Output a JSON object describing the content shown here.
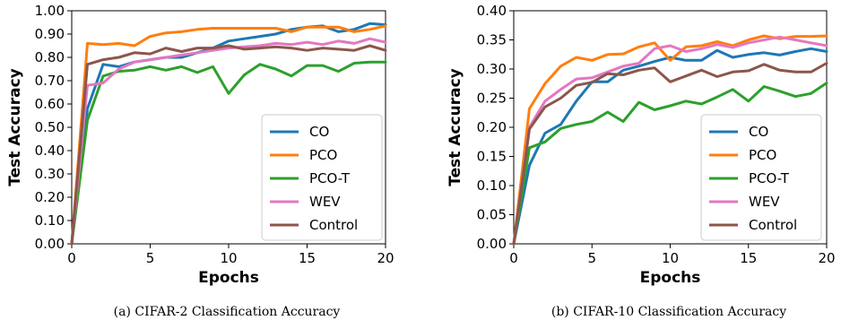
{
  "colors": {
    "CO": "#1f77b4",
    "PCO": "#ff7f0e",
    "PCO-T": "#2ca02c",
    "WEV": "#e377c2",
    "Control": "#8c564b"
  },
  "chart_data": [
    {
      "type": "line",
      "title": "",
      "caption": "(a) CIFAR-2 Classification Accuracy",
      "xlabel": "Epochs",
      "ylabel": "Test Accuracy",
      "xlim": [
        0,
        20
      ],
      "ylim": [
        0,
        1.0
      ],
      "xticks": [
        0,
        5,
        10,
        15,
        20
      ],
      "yticks": [
        0.0,
        0.1,
        0.2,
        0.3,
        0.4,
        0.5,
        0.6,
        0.7,
        0.8,
        0.9,
        1.0
      ],
      "ytick_labels": [
        "0.00",
        "0.10",
        "0.20",
        "0.30",
        "0.40",
        "0.50",
        "0.60",
        "0.70",
        "0.80",
        "0.90",
        "1.00"
      ],
      "legend_position": "lower-right",
      "x": [
        0,
        1,
        2,
        3,
        4,
        5,
        6,
        7,
        8,
        9,
        10,
        11,
        12,
        13,
        14,
        15,
        16,
        17,
        18,
        19,
        20
      ],
      "series": [
        {
          "name": "CO",
          "values": [
            0.0,
            0.58,
            0.77,
            0.76,
            0.78,
            0.79,
            0.8,
            0.8,
            0.82,
            0.84,
            0.87,
            0.88,
            0.89,
            0.9,
            0.92,
            0.93,
            0.935,
            0.91,
            0.92,
            0.945,
            0.94
          ]
        },
        {
          "name": "PCO",
          "values": [
            0.0,
            0.86,
            0.855,
            0.86,
            0.85,
            0.89,
            0.905,
            0.91,
            0.92,
            0.925,
            0.925,
            0.925,
            0.925,
            0.925,
            0.91,
            0.93,
            0.93,
            0.93,
            0.91,
            0.92,
            0.935
          ]
        },
        {
          "name": "PCO-T",
          "values": [
            0.0,
            0.53,
            0.72,
            0.74,
            0.745,
            0.76,
            0.745,
            0.76,
            0.735,
            0.76,
            0.645,
            0.725,
            0.77,
            0.75,
            0.72,
            0.765,
            0.765,
            0.74,
            0.775,
            0.78,
            0.78
          ]
        },
        {
          "name": "WEV",
          "values": [
            0.0,
            0.68,
            0.69,
            0.75,
            0.78,
            0.79,
            0.8,
            0.81,
            0.82,
            0.83,
            0.84,
            0.845,
            0.85,
            0.86,
            0.855,
            0.865,
            0.855,
            0.87,
            0.86,
            0.88,
            0.865
          ]
        },
        {
          "name": "Control",
          "values": [
            0.0,
            0.77,
            0.79,
            0.8,
            0.82,
            0.815,
            0.84,
            0.825,
            0.84,
            0.84,
            0.85,
            0.835,
            0.84,
            0.845,
            0.84,
            0.83,
            0.84,
            0.835,
            0.83,
            0.85,
            0.83
          ]
        }
      ]
    },
    {
      "type": "line",
      "title": "",
      "caption": "(b) CIFAR-10 Classification Accuracy",
      "xlabel": "Epochs",
      "ylabel": "Test Accuracy",
      "xlim": [
        0,
        20
      ],
      "ylim": [
        0,
        0.4
      ],
      "xticks": [
        0,
        5,
        10,
        15,
        20
      ],
      "yticks": [
        0.0,
        0.05,
        0.1,
        0.15,
        0.2,
        0.25,
        0.3,
        0.35,
        0.4
      ],
      "ytick_labels": [
        "0.00",
        "0.05",
        "0.10",
        "0.15",
        "0.20",
        "0.25",
        "0.30",
        "0.35",
        "0.40"
      ],
      "legend_position": "lower-right",
      "x": [
        0,
        1,
        2,
        3,
        4,
        5,
        6,
        7,
        8,
        9,
        10,
        11,
        12,
        13,
        14,
        15,
        16,
        17,
        18,
        19,
        20
      ],
      "series": [
        {
          "name": "CO",
          "values": [
            0.0,
            0.135,
            0.19,
            0.205,
            0.245,
            0.278,
            0.278,
            0.298,
            0.305,
            0.313,
            0.32,
            0.315,
            0.315,
            0.332,
            0.32,
            0.325,
            0.328,
            0.324,
            0.33,
            0.335,
            0.33
          ]
        },
        {
          "name": "PCO",
          "values": [
            0.0,
            0.232,
            0.275,
            0.305,
            0.32,
            0.315,
            0.325,
            0.326,
            0.338,
            0.345,
            0.315,
            0.338,
            0.34,
            0.347,
            0.34,
            0.35,
            0.357,
            0.352,
            0.356,
            0.356,
            0.357
          ]
        },
        {
          "name": "PCO-T",
          "values": [
            0.0,
            0.165,
            0.175,
            0.198,
            0.205,
            0.21,
            0.226,
            0.21,
            0.243,
            0.23,
            0.237,
            0.245,
            0.24,
            0.252,
            0.265,
            0.245,
            0.27,
            0.262,
            0.253,
            0.258,
            0.276
          ]
        },
        {
          "name": "WEV",
          "values": [
            0.0,
            0.2,
            0.245,
            0.265,
            0.283,
            0.285,
            0.295,
            0.305,
            0.31,
            0.335,
            0.34,
            0.33,
            0.335,
            0.342,
            0.337,
            0.345,
            0.35,
            0.355,
            0.35,
            0.345,
            0.34
          ]
        },
        {
          "name": "Control",
          "values": [
            0.0,
            0.197,
            0.235,
            0.25,
            0.272,
            0.277,
            0.292,
            0.29,
            0.298,
            0.302,
            0.278,
            0.288,
            0.298,
            0.287,
            0.295,
            0.297,
            0.308,
            0.298,
            0.295,
            0.295,
            0.31
          ]
        }
      ]
    }
  ]
}
